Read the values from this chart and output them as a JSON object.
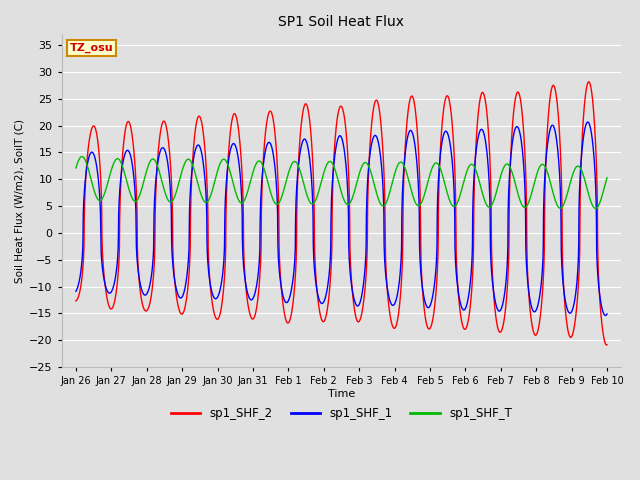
{
  "title": "SP1 Soil Heat Flux",
  "xlabel": "Time",
  "ylabel": "Soil Heat Flux (W/m2), SoilT (C)",
  "ylim": [
    -25,
    37
  ],
  "yticks": [
    -25,
    -20,
    -15,
    -10,
    -5,
    0,
    5,
    10,
    15,
    20,
    25,
    30,
    35
  ],
  "xtick_labels": [
    "Jan 26",
    "Jan 27",
    "Jan 28",
    "Jan 29",
    "Jan 30",
    "Jan 31",
    "Feb 1",
    "Feb 2",
    "Feb 3",
    "Feb 4",
    "Feb 5",
    "Feb 6",
    "Feb 7",
    "Feb 8",
    "Feb 9",
    "Feb 10"
  ],
  "xtick_positions": [
    26,
    27,
    28,
    29,
    30,
    31,
    32,
    33,
    34,
    35,
    36,
    37,
    38,
    39,
    40,
    41
  ],
  "color_shf2": "#ff0000",
  "color_shf1": "#0000ff",
  "color_shft": "#00bb00",
  "line_width": 1.0,
  "bg_color": "#e0e0e0",
  "grid_color": "#ffffff",
  "legend_labels": [
    "sp1_SHF_2",
    "sp1_SHF_1",
    "sp1_SHF_T"
  ],
  "tz_label": "TZ_osu",
  "tz_box_facecolor": "#ffffcc",
  "tz_box_edgecolor": "#cc8800",
  "tz_text_color": "#cc0000"
}
